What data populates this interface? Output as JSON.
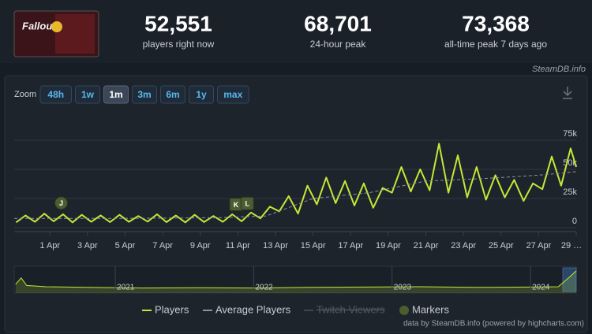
{
  "header": {
    "logo_text": "Fallout",
    "stats": [
      {
        "value": "52,551",
        "label": "players right now"
      },
      {
        "value": "68,701",
        "label": "24-hour peak"
      },
      {
        "value": "73,368",
        "label": "all-time peak 7 days ago"
      }
    ],
    "credit": "SteamDB.info"
  },
  "zoom": {
    "label": "Zoom",
    "options": [
      "48h",
      "1w",
      "1m",
      "3m",
      "6m",
      "1y",
      "max"
    ],
    "active": "1m"
  },
  "chart_data": {
    "type": "line",
    "grid": true,
    "xlim": [
      -0.9,
      29.0
    ],
    "xticks": [
      {
        "value": 1,
        "label": "1 Apr"
      },
      {
        "value": 3,
        "label": "3 Apr"
      },
      {
        "value": 5,
        "label": "5 Apr"
      },
      {
        "value": 7,
        "label": "7 Apr"
      },
      {
        "value": 9,
        "label": "9 Apr"
      },
      {
        "value": 11,
        "label": "11 Apr"
      },
      {
        "value": 13,
        "label": "13 Apr"
      },
      {
        "value": 15,
        "label": "15 Apr"
      },
      {
        "value": 17,
        "label": "17 Apr"
      },
      {
        "value": 19,
        "label": "19 Apr"
      },
      {
        "value": 21,
        "label": "21 Apr"
      },
      {
        "value": 23,
        "label": "23 Apr"
      },
      {
        "value": 25,
        "label": "25 Apr"
      },
      {
        "value": 27,
        "label": "27 Apr"
      },
      {
        "value": 29,
        "label": "29 …"
      }
    ],
    "ylim": [
      0,
      75000
    ],
    "yticks": [
      0,
      {
        "value": 25000,
        "label": "25k"
      },
      {
        "value": 50000,
        "label": "50k"
      },
      {
        "value": 75000,
        "label": "75k"
      }
    ],
    "series": [
      {
        "name": "Players",
        "color": "#c4e836",
        "x": [
          -0.8,
          -0.3,
          0.2,
          0.7,
          1.2,
          1.7,
          2.2,
          2.7,
          3.2,
          3.7,
          4.2,
          4.7,
          5.2,
          5.7,
          6.2,
          6.7,
          7.2,
          7.7,
          8.2,
          8.7,
          9.2,
          9.7,
          10.2,
          10.7,
          11.2,
          11.7,
          12.2,
          12.7,
          13.2,
          13.7,
          14.2,
          14.7,
          15.2,
          15.7,
          16.2,
          16.7,
          17.2,
          17.7,
          18.2,
          18.7,
          19.2,
          19.7,
          20.2,
          20.7,
          21.2,
          21.7,
          22.2,
          22.7,
          23.2,
          23.7,
          24.2,
          24.7,
          25.2,
          25.7,
          26.2,
          26.7,
          27.2,
          27.7,
          28.2,
          28.7,
          29.0
        ],
        "values": [
          4500,
          10500,
          5000,
          12000,
          5500,
          11500,
          4500,
          11000,
          5000,
          10500,
          4800,
          11000,
          5000,
          10000,
          5200,
          11500,
          4700,
          10500,
          4500,
          11000,
          4800,
          10000,
          5000,
          11500,
          5500,
          13000,
          8000,
          18000,
          14000,
          27000,
          12000,
          36000,
          20000,
          43000,
          21000,
          40000,
          19000,
          38000,
          17000,
          34000,
          30000,
          52000,
          31000,
          50000,
          32000,
          72000,
          30000,
          62000,
          26000,
          52000,
          24000,
          45000,
          26000,
          41000,
          23000,
          38000,
          33000,
          61000,
          36000,
          68000,
          52000
        ]
      },
      {
        "name": "Average Players",
        "color": "#8a939e",
        "dashed": true,
        "x": [
          -0.9,
          5,
          10,
          12.5,
          15,
          18,
          21,
          24,
          27,
          29
        ],
        "values": [
          8000,
          8000,
          8500,
          10000,
          25000,
          30000,
          40000,
          42000,
          45000,
          48000
        ]
      },
      {
        "name": "Twitch Viewers",
        "color": "#3a4656",
        "visible": false
      }
    ],
    "markers": {
      "name": "Markers",
      "color": "#4b5e30",
      "points": [
        {
          "x": 1.6,
          "label": "J"
        },
        {
          "x": 10.9,
          "label": "K"
        },
        {
          "x": 11.5,
          "label": "L"
        }
      ]
    },
    "navigator": {
      "xlim": [
        2020.27,
        2024.33
      ],
      "ylim": [
        0,
        40000
      ],
      "xticks": [
        2021,
        2022,
        2023,
        2024
      ],
      "x": [
        2020.28,
        2020.32,
        2020.36,
        2020.5,
        2020.8,
        2021.2,
        2021.6,
        2022.0,
        2022.4,
        2022.8,
        2023.2,
        2023.6,
        2024.0,
        2024.2,
        2024.28,
        2024.33
      ],
      "values": [
        14000,
        24000,
        12000,
        10000,
        9000,
        8000,
        8500,
        8000,
        9000,
        9500,
        10000,
        9000,
        9500,
        10000,
        25000,
        35000
      ]
    },
    "credit": "data by SteamDB.info (powered by highcharts.com)"
  }
}
